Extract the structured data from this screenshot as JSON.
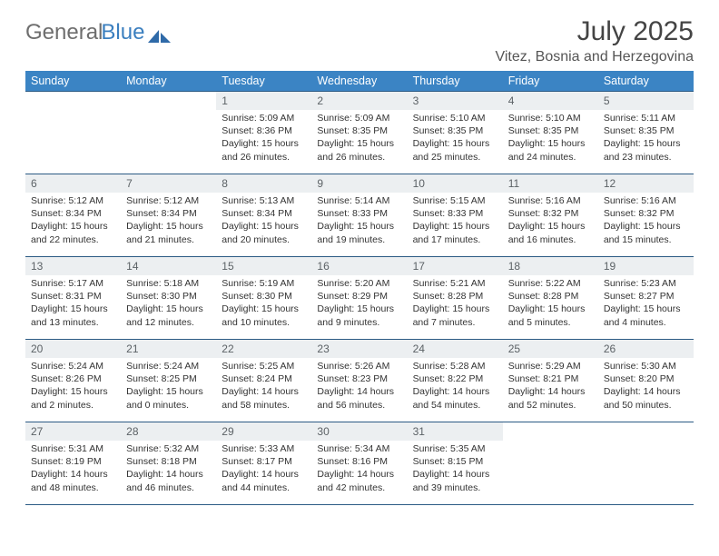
{
  "brand": {
    "name1": "General",
    "name2": "Blue"
  },
  "header": {
    "title": "July 2025",
    "location": "Vitez, Bosnia and Herzegovina"
  },
  "colors": {
    "header_bg": "#3b84c4",
    "header_text": "#ffffff",
    "daynum_bg": "#eceff1",
    "daynum_text": "#5c6266",
    "row_border": "#2b5a84",
    "brand_gray": "#6e6e6e",
    "brand_blue": "#3b7fbf"
  },
  "weekdays": [
    "Sunday",
    "Monday",
    "Tuesday",
    "Wednesday",
    "Thursday",
    "Friday",
    "Saturday"
  ],
  "weeks": [
    [
      null,
      null,
      {
        "n": "1",
        "sr": "Sunrise: 5:09 AM",
        "ss": "Sunset: 8:36 PM",
        "dl": "Daylight: 15 hours and 26 minutes."
      },
      {
        "n": "2",
        "sr": "Sunrise: 5:09 AM",
        "ss": "Sunset: 8:35 PM",
        "dl": "Daylight: 15 hours and 26 minutes."
      },
      {
        "n": "3",
        "sr": "Sunrise: 5:10 AM",
        "ss": "Sunset: 8:35 PM",
        "dl": "Daylight: 15 hours and 25 minutes."
      },
      {
        "n": "4",
        "sr": "Sunrise: 5:10 AM",
        "ss": "Sunset: 8:35 PM",
        "dl": "Daylight: 15 hours and 24 minutes."
      },
      {
        "n": "5",
        "sr": "Sunrise: 5:11 AM",
        "ss": "Sunset: 8:35 PM",
        "dl": "Daylight: 15 hours and 23 minutes."
      }
    ],
    [
      {
        "n": "6",
        "sr": "Sunrise: 5:12 AM",
        "ss": "Sunset: 8:34 PM",
        "dl": "Daylight: 15 hours and 22 minutes."
      },
      {
        "n": "7",
        "sr": "Sunrise: 5:12 AM",
        "ss": "Sunset: 8:34 PM",
        "dl": "Daylight: 15 hours and 21 minutes."
      },
      {
        "n": "8",
        "sr": "Sunrise: 5:13 AM",
        "ss": "Sunset: 8:34 PM",
        "dl": "Daylight: 15 hours and 20 minutes."
      },
      {
        "n": "9",
        "sr": "Sunrise: 5:14 AM",
        "ss": "Sunset: 8:33 PM",
        "dl": "Daylight: 15 hours and 19 minutes."
      },
      {
        "n": "10",
        "sr": "Sunrise: 5:15 AM",
        "ss": "Sunset: 8:33 PM",
        "dl": "Daylight: 15 hours and 17 minutes."
      },
      {
        "n": "11",
        "sr": "Sunrise: 5:16 AM",
        "ss": "Sunset: 8:32 PM",
        "dl": "Daylight: 15 hours and 16 minutes."
      },
      {
        "n": "12",
        "sr": "Sunrise: 5:16 AM",
        "ss": "Sunset: 8:32 PM",
        "dl": "Daylight: 15 hours and 15 minutes."
      }
    ],
    [
      {
        "n": "13",
        "sr": "Sunrise: 5:17 AM",
        "ss": "Sunset: 8:31 PM",
        "dl": "Daylight: 15 hours and 13 minutes."
      },
      {
        "n": "14",
        "sr": "Sunrise: 5:18 AM",
        "ss": "Sunset: 8:30 PM",
        "dl": "Daylight: 15 hours and 12 minutes."
      },
      {
        "n": "15",
        "sr": "Sunrise: 5:19 AM",
        "ss": "Sunset: 8:30 PM",
        "dl": "Daylight: 15 hours and 10 minutes."
      },
      {
        "n": "16",
        "sr": "Sunrise: 5:20 AM",
        "ss": "Sunset: 8:29 PM",
        "dl": "Daylight: 15 hours and 9 minutes."
      },
      {
        "n": "17",
        "sr": "Sunrise: 5:21 AM",
        "ss": "Sunset: 8:28 PM",
        "dl": "Daylight: 15 hours and 7 minutes."
      },
      {
        "n": "18",
        "sr": "Sunrise: 5:22 AM",
        "ss": "Sunset: 8:28 PM",
        "dl": "Daylight: 15 hours and 5 minutes."
      },
      {
        "n": "19",
        "sr": "Sunrise: 5:23 AM",
        "ss": "Sunset: 8:27 PM",
        "dl": "Daylight: 15 hours and 4 minutes."
      }
    ],
    [
      {
        "n": "20",
        "sr": "Sunrise: 5:24 AM",
        "ss": "Sunset: 8:26 PM",
        "dl": "Daylight: 15 hours and 2 minutes."
      },
      {
        "n": "21",
        "sr": "Sunrise: 5:24 AM",
        "ss": "Sunset: 8:25 PM",
        "dl": "Daylight: 15 hours and 0 minutes."
      },
      {
        "n": "22",
        "sr": "Sunrise: 5:25 AM",
        "ss": "Sunset: 8:24 PM",
        "dl": "Daylight: 14 hours and 58 minutes."
      },
      {
        "n": "23",
        "sr": "Sunrise: 5:26 AM",
        "ss": "Sunset: 8:23 PM",
        "dl": "Daylight: 14 hours and 56 minutes."
      },
      {
        "n": "24",
        "sr": "Sunrise: 5:28 AM",
        "ss": "Sunset: 8:22 PM",
        "dl": "Daylight: 14 hours and 54 minutes."
      },
      {
        "n": "25",
        "sr": "Sunrise: 5:29 AM",
        "ss": "Sunset: 8:21 PM",
        "dl": "Daylight: 14 hours and 52 minutes."
      },
      {
        "n": "26",
        "sr": "Sunrise: 5:30 AM",
        "ss": "Sunset: 8:20 PM",
        "dl": "Daylight: 14 hours and 50 minutes."
      }
    ],
    [
      {
        "n": "27",
        "sr": "Sunrise: 5:31 AM",
        "ss": "Sunset: 8:19 PM",
        "dl": "Daylight: 14 hours and 48 minutes."
      },
      {
        "n": "28",
        "sr": "Sunrise: 5:32 AM",
        "ss": "Sunset: 8:18 PM",
        "dl": "Daylight: 14 hours and 46 minutes."
      },
      {
        "n": "29",
        "sr": "Sunrise: 5:33 AM",
        "ss": "Sunset: 8:17 PM",
        "dl": "Daylight: 14 hours and 44 minutes."
      },
      {
        "n": "30",
        "sr": "Sunrise: 5:34 AM",
        "ss": "Sunset: 8:16 PM",
        "dl": "Daylight: 14 hours and 42 minutes."
      },
      {
        "n": "31",
        "sr": "Sunrise: 5:35 AM",
        "ss": "Sunset: 8:15 PM",
        "dl": "Daylight: 14 hours and 39 minutes."
      },
      null,
      null
    ]
  ]
}
